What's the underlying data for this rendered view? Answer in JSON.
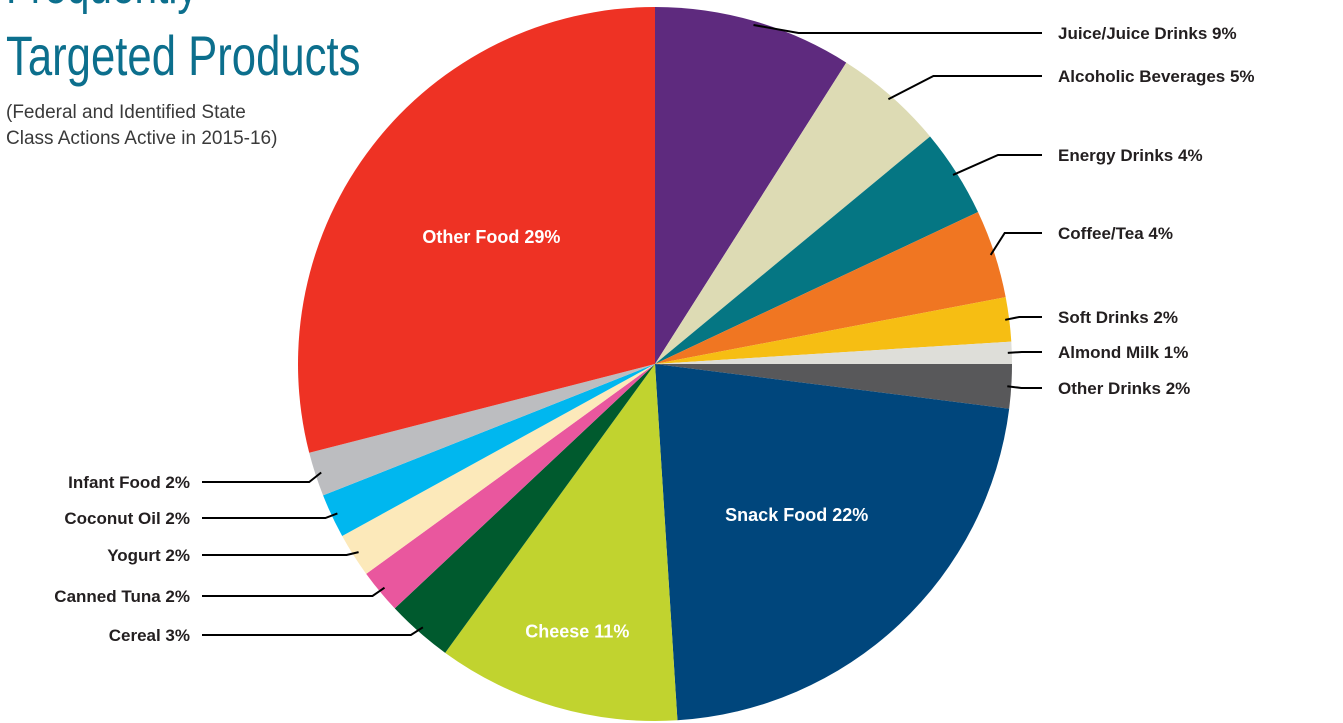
{
  "title_top": "Frequently",
  "title": "Targeted Products",
  "subtitle": "(Federal and Identified State Class Actions Active in 2015-16)",
  "chart_data": {
    "type": "pie",
    "title": "Targeted Products",
    "subtitle": "(Federal and Identified State Class Actions Active in 2015-16)",
    "start": "12 o'clock",
    "direction": "clockwise",
    "slices": [
      {
        "label": "Juice/Juice Drinks 9%",
        "value": 9,
        "color": "#5e2a7e",
        "placement": "outside-right"
      },
      {
        "label": "Alcoholic Beverages 5%",
        "value": 5,
        "color": "#dddbb4",
        "placement": "outside-right"
      },
      {
        "label": "Energy Drinks 4%",
        "value": 4,
        "color": "#057683",
        "placement": "outside-right"
      },
      {
        "label": "Coffee/Tea 4%",
        "value": 4,
        "color": "#f07622",
        "placement": "outside-right"
      },
      {
        "label": "Soft Drinks 2%",
        "value": 2,
        "color": "#f6be13",
        "placement": "outside-right"
      },
      {
        "label": "Almond Milk 1%",
        "value": 1,
        "color": "#deded9",
        "placement": "outside-right"
      },
      {
        "label": "Other Drinks 2%",
        "value": 2,
        "color": "#58585a",
        "placement": "outside-right"
      },
      {
        "label": "Snack Food 22%",
        "value": 22,
        "color": "#00467c",
        "placement": "inside"
      },
      {
        "label": "Cheese 11%",
        "value": 11,
        "color": "#c1d32f",
        "placement": "inside"
      },
      {
        "label": "Cereal 3%",
        "value": 3,
        "color": "#005a2e",
        "placement": "outside-left"
      },
      {
        "label": "Canned Tuna 2%",
        "value": 2,
        "color": "#e9579e",
        "placement": "outside-left"
      },
      {
        "label": "Yogurt 2%",
        "value": 2,
        "color": "#fce9ba",
        "placement": "outside-left"
      },
      {
        "label": "Coconut Oil 2%",
        "value": 2,
        "color": "#00b7ef",
        "placement": "outside-left"
      },
      {
        "label": "Infant Food 2%",
        "value": 2,
        "color": "#bcbdc0",
        "placement": "outside-left"
      },
      {
        "label": "Other Food 29%",
        "value": 29,
        "color": "#ee3224",
        "placement": "inside"
      }
    ]
  }
}
